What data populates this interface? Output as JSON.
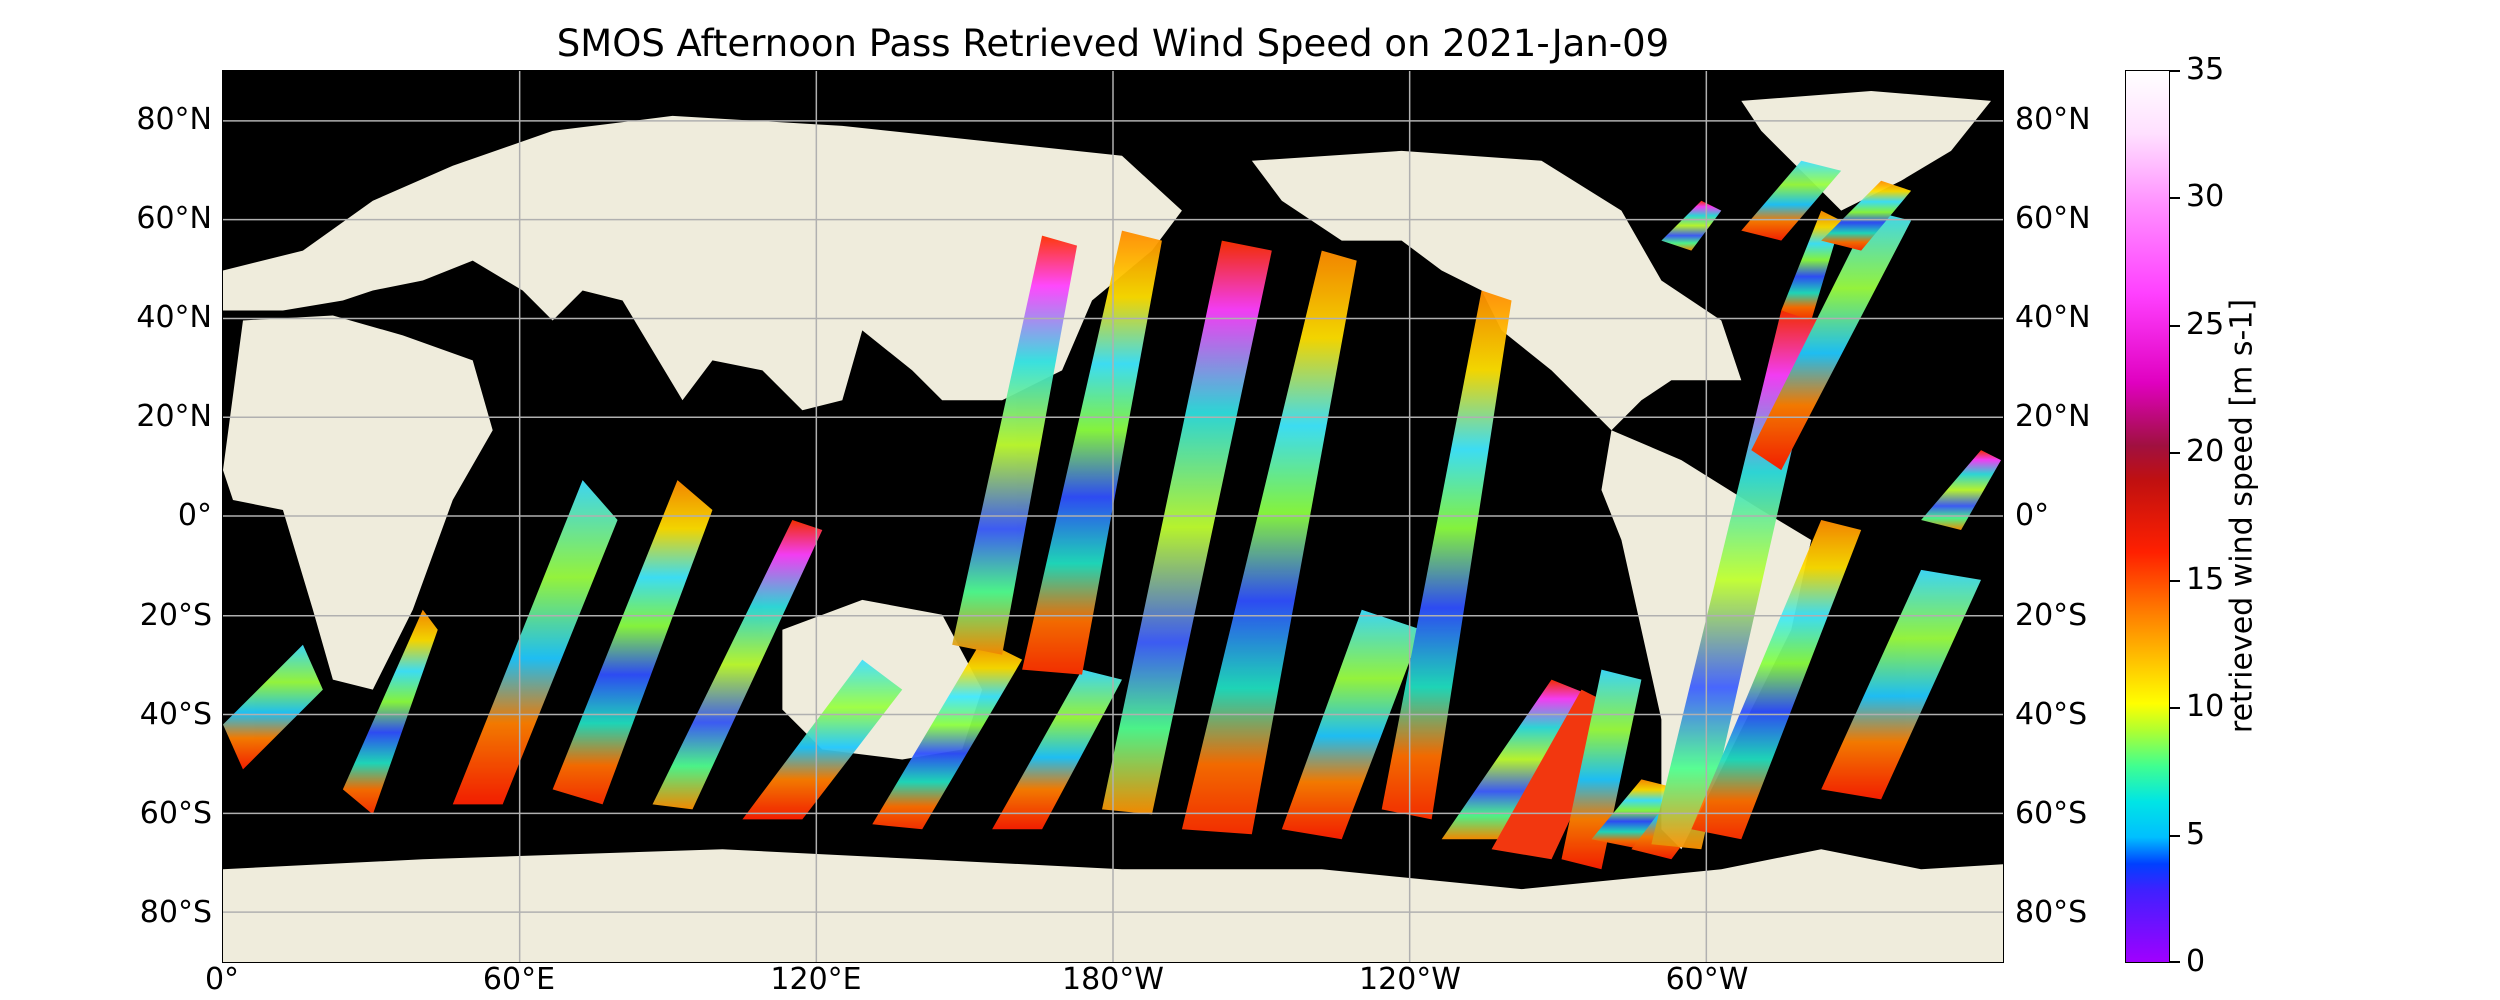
{
  "title": "SMOS Afternoon Pass Retrieved Wind Speed on 2021-Jan-09",
  "lat_labels": [
    "80°N",
    "60°N",
    "40°N",
    "20°N",
    "0°",
    "20°S",
    "40°S",
    "60°S",
    "80°S"
  ],
  "lon_labels": [
    "0°",
    "60°E",
    "120°E",
    "180°W",
    "120°W",
    "60°W"
  ],
  "colorbar": {
    "label": "retrieved wind speed [m s-1]",
    "ticks": [
      "35",
      "30",
      "25",
      "20",
      "15",
      "10",
      "5",
      "0"
    ],
    "range": [
      0,
      35
    ]
  },
  "colors": {
    "land": "#efecdc",
    "no_data": "#000000",
    "grid": "#b0b0b0"
  }
}
